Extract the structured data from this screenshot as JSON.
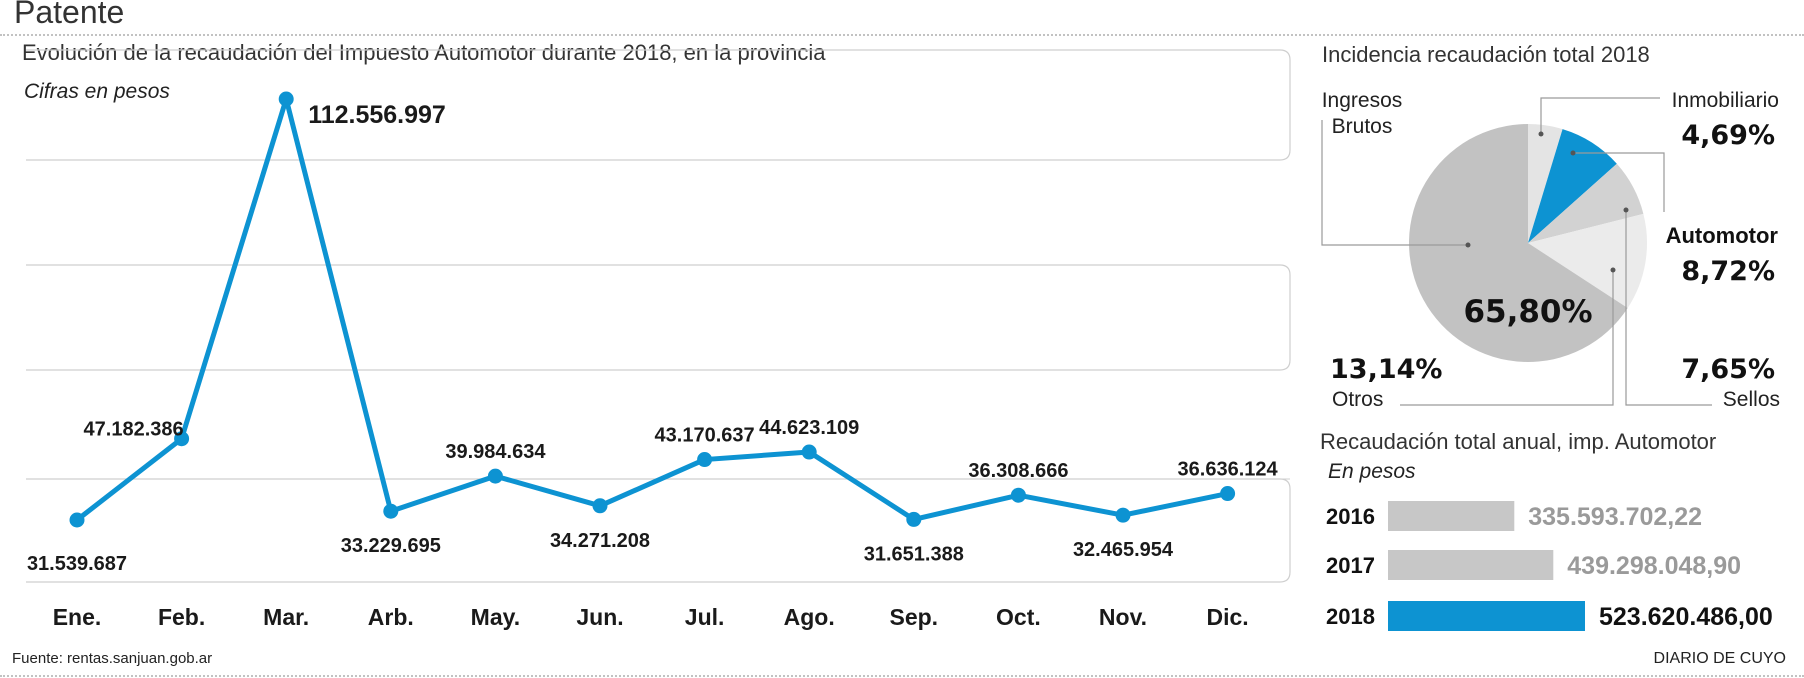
{
  "page": {
    "title": "Patente",
    "source": "Fuente: rentas.sanjuan.gob.ar",
    "brand": "DIARIO DE CUYO"
  },
  "colors": {
    "accent": "#0d93d2",
    "gray": "#c2c2c2",
    "light": "#e4e4e4",
    "mid": "#d2d2d2"
  },
  "chart_data": [
    {
      "type": "line",
      "title": "Evolución de la recaudación del Impuesto Automotor durante 2018, en la provincia",
      "subtitle": "Cifras en pesos",
      "categories": [
        "Ene.",
        "Feb.",
        "Mar.",
        "Arb.",
        "May.",
        "Jun.",
        "Jul.",
        "Ago.",
        "Sep.",
        "Oct.",
        "Nov.",
        "Dic."
      ],
      "values": [
        31539687,
        47182386,
        112556997,
        33229695,
        39984634,
        34271208,
        43170637,
        44623109,
        31651388,
        36308666,
        32465954,
        36636124
      ],
      "labels": [
        "31.539.687",
        "47.182.386",
        "112.556.997",
        "33.229.695",
        "39.984.634",
        "34.271.208",
        "43.170.637",
        "44.623.109",
        "31.651.388",
        "36.308.666",
        "32.465.954",
        "36.636.124"
      ],
      "color": "#0d93d2",
      "grid": true
    },
    {
      "type": "pie",
      "title": "Incidencia recaudación total 2018",
      "slices": [
        {
          "name": "Inmobiliario",
          "value": 4.69,
          "label": "4,69%",
          "color": "#e4e4e4"
        },
        {
          "name": "Automotor",
          "value": 8.72,
          "label": "8,72%",
          "color": "#0d93d2"
        },
        {
          "name": "Sellos",
          "value": 7.65,
          "label": "7,65%",
          "color": "#d2d2d2"
        },
        {
          "name": "Otros",
          "value": 13.14,
          "label": "13,14%",
          "color": "#ebebeb"
        },
        {
          "name": "Ingresos Brutos",
          "value": 65.8,
          "label": "65,80%",
          "color": "#c2c2c2"
        }
      ],
      "names_display": {
        "ingresos_line1": "Ingresos",
        "ingresos_line2": "Brutos"
      }
    },
    {
      "type": "bar",
      "title": "Recaudación total anual, imp. Automotor",
      "subtitle": "En pesos",
      "categories": [
        "2016",
        "2017",
        "2018"
      ],
      "values": [
        335593702.22,
        439298048.9,
        523620486.0
      ],
      "labels": [
        "335.593.702,22",
        "439.298.048,90",
        "523.620.486,00"
      ],
      "colors": [
        "#c7c7c7",
        "#c7c7c7",
        "#0d93d2"
      ],
      "label_colors": [
        "#9a9a9a",
        "#9a9a9a",
        "#111111"
      ]
    }
  ]
}
